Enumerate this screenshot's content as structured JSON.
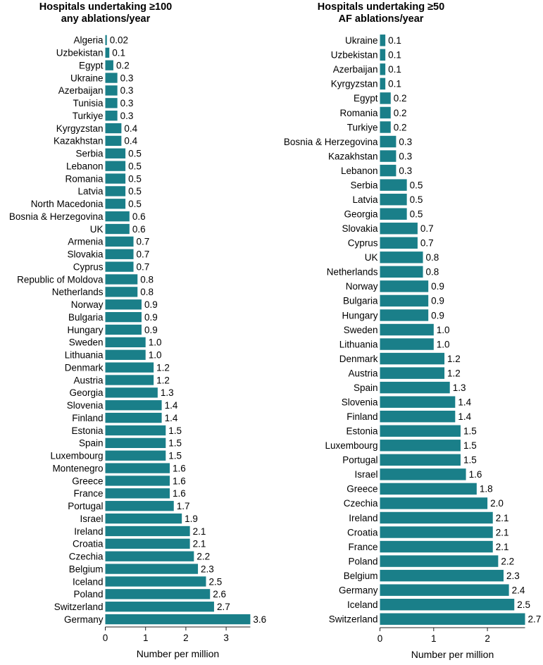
{
  "chart_data": [
    {
      "type": "bar",
      "orientation": "horizontal",
      "title": [
        "Hospitals undertaking ≥100",
        "any ablations/year"
      ],
      "xlabel": "Number per million",
      "xlim": [
        0,
        3.6
      ],
      "xticks": [
        "0",
        "1",
        "2",
        "3"
      ],
      "color": "#1a7f89",
      "categories": [
        "Algeria",
        "Uzbekistan",
        "Egypt",
        "Ukraine",
        "Azerbaijan",
        "Tunisia",
        "Turkiye",
        "Kyrgyzstan",
        "Kazakhstan",
        "Serbia",
        "Lebanon",
        "Romania",
        "Latvia",
        "North Macedonia",
        "Bosnia & Herzegovina",
        "UK",
        "Armenia",
        "Slovakia",
        "Cyprus",
        "Republic of Moldova",
        "Netherlands",
        "Norway",
        "Bulgaria",
        "Hungary",
        "Sweden",
        "Lithuania",
        "Denmark",
        "Austria",
        "Georgia",
        "Slovenia",
        "Finland",
        "Estonia",
        "Spain",
        "Luxembourg",
        "Montenegro",
        "Greece",
        "France",
        "Portugal",
        "Israel",
        "Ireland",
        "Croatia",
        "Czechia",
        "Belgium",
        "Iceland",
        "Poland",
        "Switzerland",
        "Germany"
      ],
      "values": [
        0.02,
        0.1,
        0.2,
        0.3,
        0.3,
        0.3,
        0.3,
        0.4,
        0.4,
        0.5,
        0.5,
        0.5,
        0.5,
        0.5,
        0.6,
        0.6,
        0.7,
        0.7,
        0.7,
        0.8,
        0.8,
        0.9,
        0.9,
        0.9,
        1.0,
        1.0,
        1.2,
        1.2,
        1.3,
        1.4,
        1.4,
        1.5,
        1.5,
        1.5,
        1.6,
        1.6,
        1.6,
        1.7,
        1.9,
        2.1,
        2.1,
        2.2,
        2.3,
        2.5,
        2.6,
        2.7,
        3.6
      ],
      "labels": [
        "0.02",
        "0.1",
        "0.2",
        "0.3",
        "0.3",
        "0.3",
        "0.3",
        "0.4",
        "0.4",
        "0.5",
        "0.5",
        "0.5",
        "0.5",
        "0.5",
        "0.6",
        "0.6",
        "0.7",
        "0.7",
        "0.7",
        "0.8",
        "0.8",
        "0.9",
        "0.9",
        "0.9",
        "1.0",
        "1.0",
        "1.2",
        "1.2",
        "1.3",
        "1.4",
        "1.4",
        "1.5",
        "1.5",
        "1.5",
        "1.6",
        "1.6",
        "1.6",
        "1.7",
        "1.9",
        "2.1",
        "2.1",
        "2.2",
        "2.3",
        "2.5",
        "2.6",
        "2.7",
        "3.6"
      ]
    },
    {
      "type": "bar",
      "orientation": "horizontal",
      "title": [
        "Hospitals undertaking ≥50",
        "AF ablations/year"
      ],
      "xlabel": "Number per million",
      "xlim": [
        0,
        2.7
      ],
      "xticks": [
        "0",
        "1",
        "2"
      ],
      "color": "#1a7f89",
      "categories": [
        "Ukraine",
        "Uzbekistan",
        "Azerbaijan",
        "Kyrgyzstan",
        "Egypt",
        "Romania",
        "Turkiye",
        "Bosnia & Herzegovina",
        "Kazakhstan",
        "Lebanon",
        "Serbia",
        "Latvia",
        "Georgia",
        "Slovakia",
        "Cyprus",
        "UK",
        "Netherlands",
        "Norway",
        "Bulgaria",
        "Hungary",
        "Sweden",
        "Lithuania",
        "Denmark",
        "Austria",
        "Spain",
        "Slovenia",
        "Finland",
        "Estonia",
        "Luxembourg",
        "Portugal",
        "Israel",
        "Greece",
        "Czechia",
        "Ireland",
        "Croatia",
        "France",
        "Poland",
        "Belgium",
        "Germany",
        "Iceland",
        "Switzerland"
      ],
      "values": [
        0.1,
        0.1,
        0.1,
        0.1,
        0.2,
        0.2,
        0.2,
        0.3,
        0.3,
        0.3,
        0.5,
        0.5,
        0.5,
        0.7,
        0.7,
        0.8,
        0.8,
        0.9,
        0.9,
        0.9,
        1.0,
        1.0,
        1.2,
        1.2,
        1.3,
        1.4,
        1.4,
        1.5,
        1.5,
        1.5,
        1.6,
        1.8,
        2.0,
        2.1,
        2.1,
        2.1,
        2.2,
        2.3,
        2.4,
        2.5,
        2.7
      ],
      "labels": [
        "0.1",
        "0.1",
        "0.1",
        "0.1",
        "0.2",
        "0.2",
        "0.2",
        "0.3",
        "0.3",
        "0.3",
        "0.5",
        "0.5",
        "0.5",
        "0.7",
        "0.7",
        "0.8",
        "0.8",
        "0.9",
        "0.9",
        "0.9",
        "1.0",
        "1.0",
        "1.2",
        "1.2",
        "1.3",
        "1.4",
        "1.4",
        "1.5",
        "1.5",
        "1.5",
        "1.6",
        "1.8",
        "2.0",
        "2.1",
        "2.1",
        "2.1",
        "2.2",
        "2.3",
        "2.4",
        "2.5",
        "2.7"
      ]
    }
  ]
}
